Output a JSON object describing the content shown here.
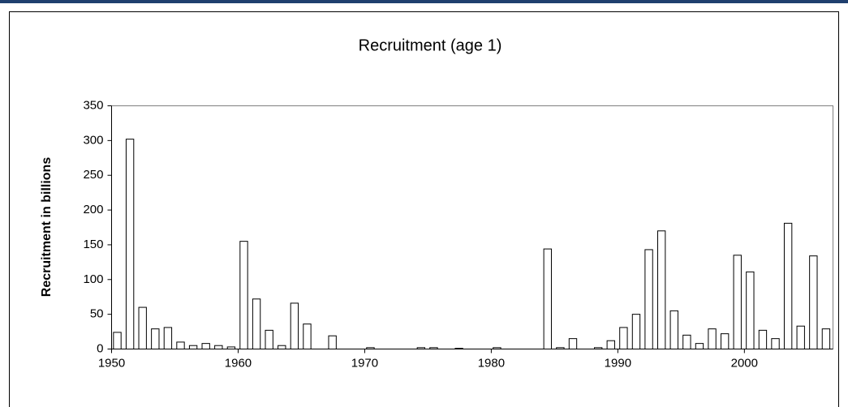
{
  "chart_data": {
    "type": "bar",
    "title": "Recruitment (age 1)",
    "ylabel": "Recruitment in billions",
    "x": [
      1950,
      1951,
      1952,
      1953,
      1954,
      1955,
      1956,
      1957,
      1958,
      1959,
      1960,
      1961,
      1962,
      1963,
      1964,
      1965,
      1966,
      1967,
      1968,
      1969,
      1970,
      1971,
      1972,
      1973,
      1974,
      1975,
      1976,
      1977,
      1978,
      1979,
      1980,
      1981,
      1982,
      1983,
      1984,
      1985,
      1986,
      1987,
      1988,
      1989,
      1990,
      1991,
      1992,
      1993,
      1994,
      1995,
      1996,
      1997,
      1998,
      1999,
      2000,
      2001,
      2002,
      2003,
      2004,
      2005,
      2006
    ],
    "values": [
      24,
      302,
      60,
      29,
      31,
      10,
      5,
      8,
      5,
      3,
      155,
      72,
      27,
      5,
      66,
      36,
      0,
      19,
      0,
      0,
      2,
      0,
      0,
      0,
      2,
      2,
      0,
      1,
      0,
      0,
      2,
      0,
      0,
      0,
      144,
      2,
      15,
      0,
      2,
      12,
      31,
      50,
      143,
      170,
      55,
      20,
      8,
      29,
      22,
      135,
      111,
      27,
      15,
      181,
      33,
      134,
      29
    ],
    "color": "#ffffff",
    "edgecolor": "#000000",
    "xlim": [
      1950,
      2007
    ],
    "xticks": [
      1950,
      1960,
      1970,
      1980,
      1990,
      2000
    ],
    "ylim": [
      0,
      350
    ],
    "yticks": [
      0,
      50,
      100,
      150,
      200,
      250,
      300,
      350
    ],
    "grid": false
  }
}
